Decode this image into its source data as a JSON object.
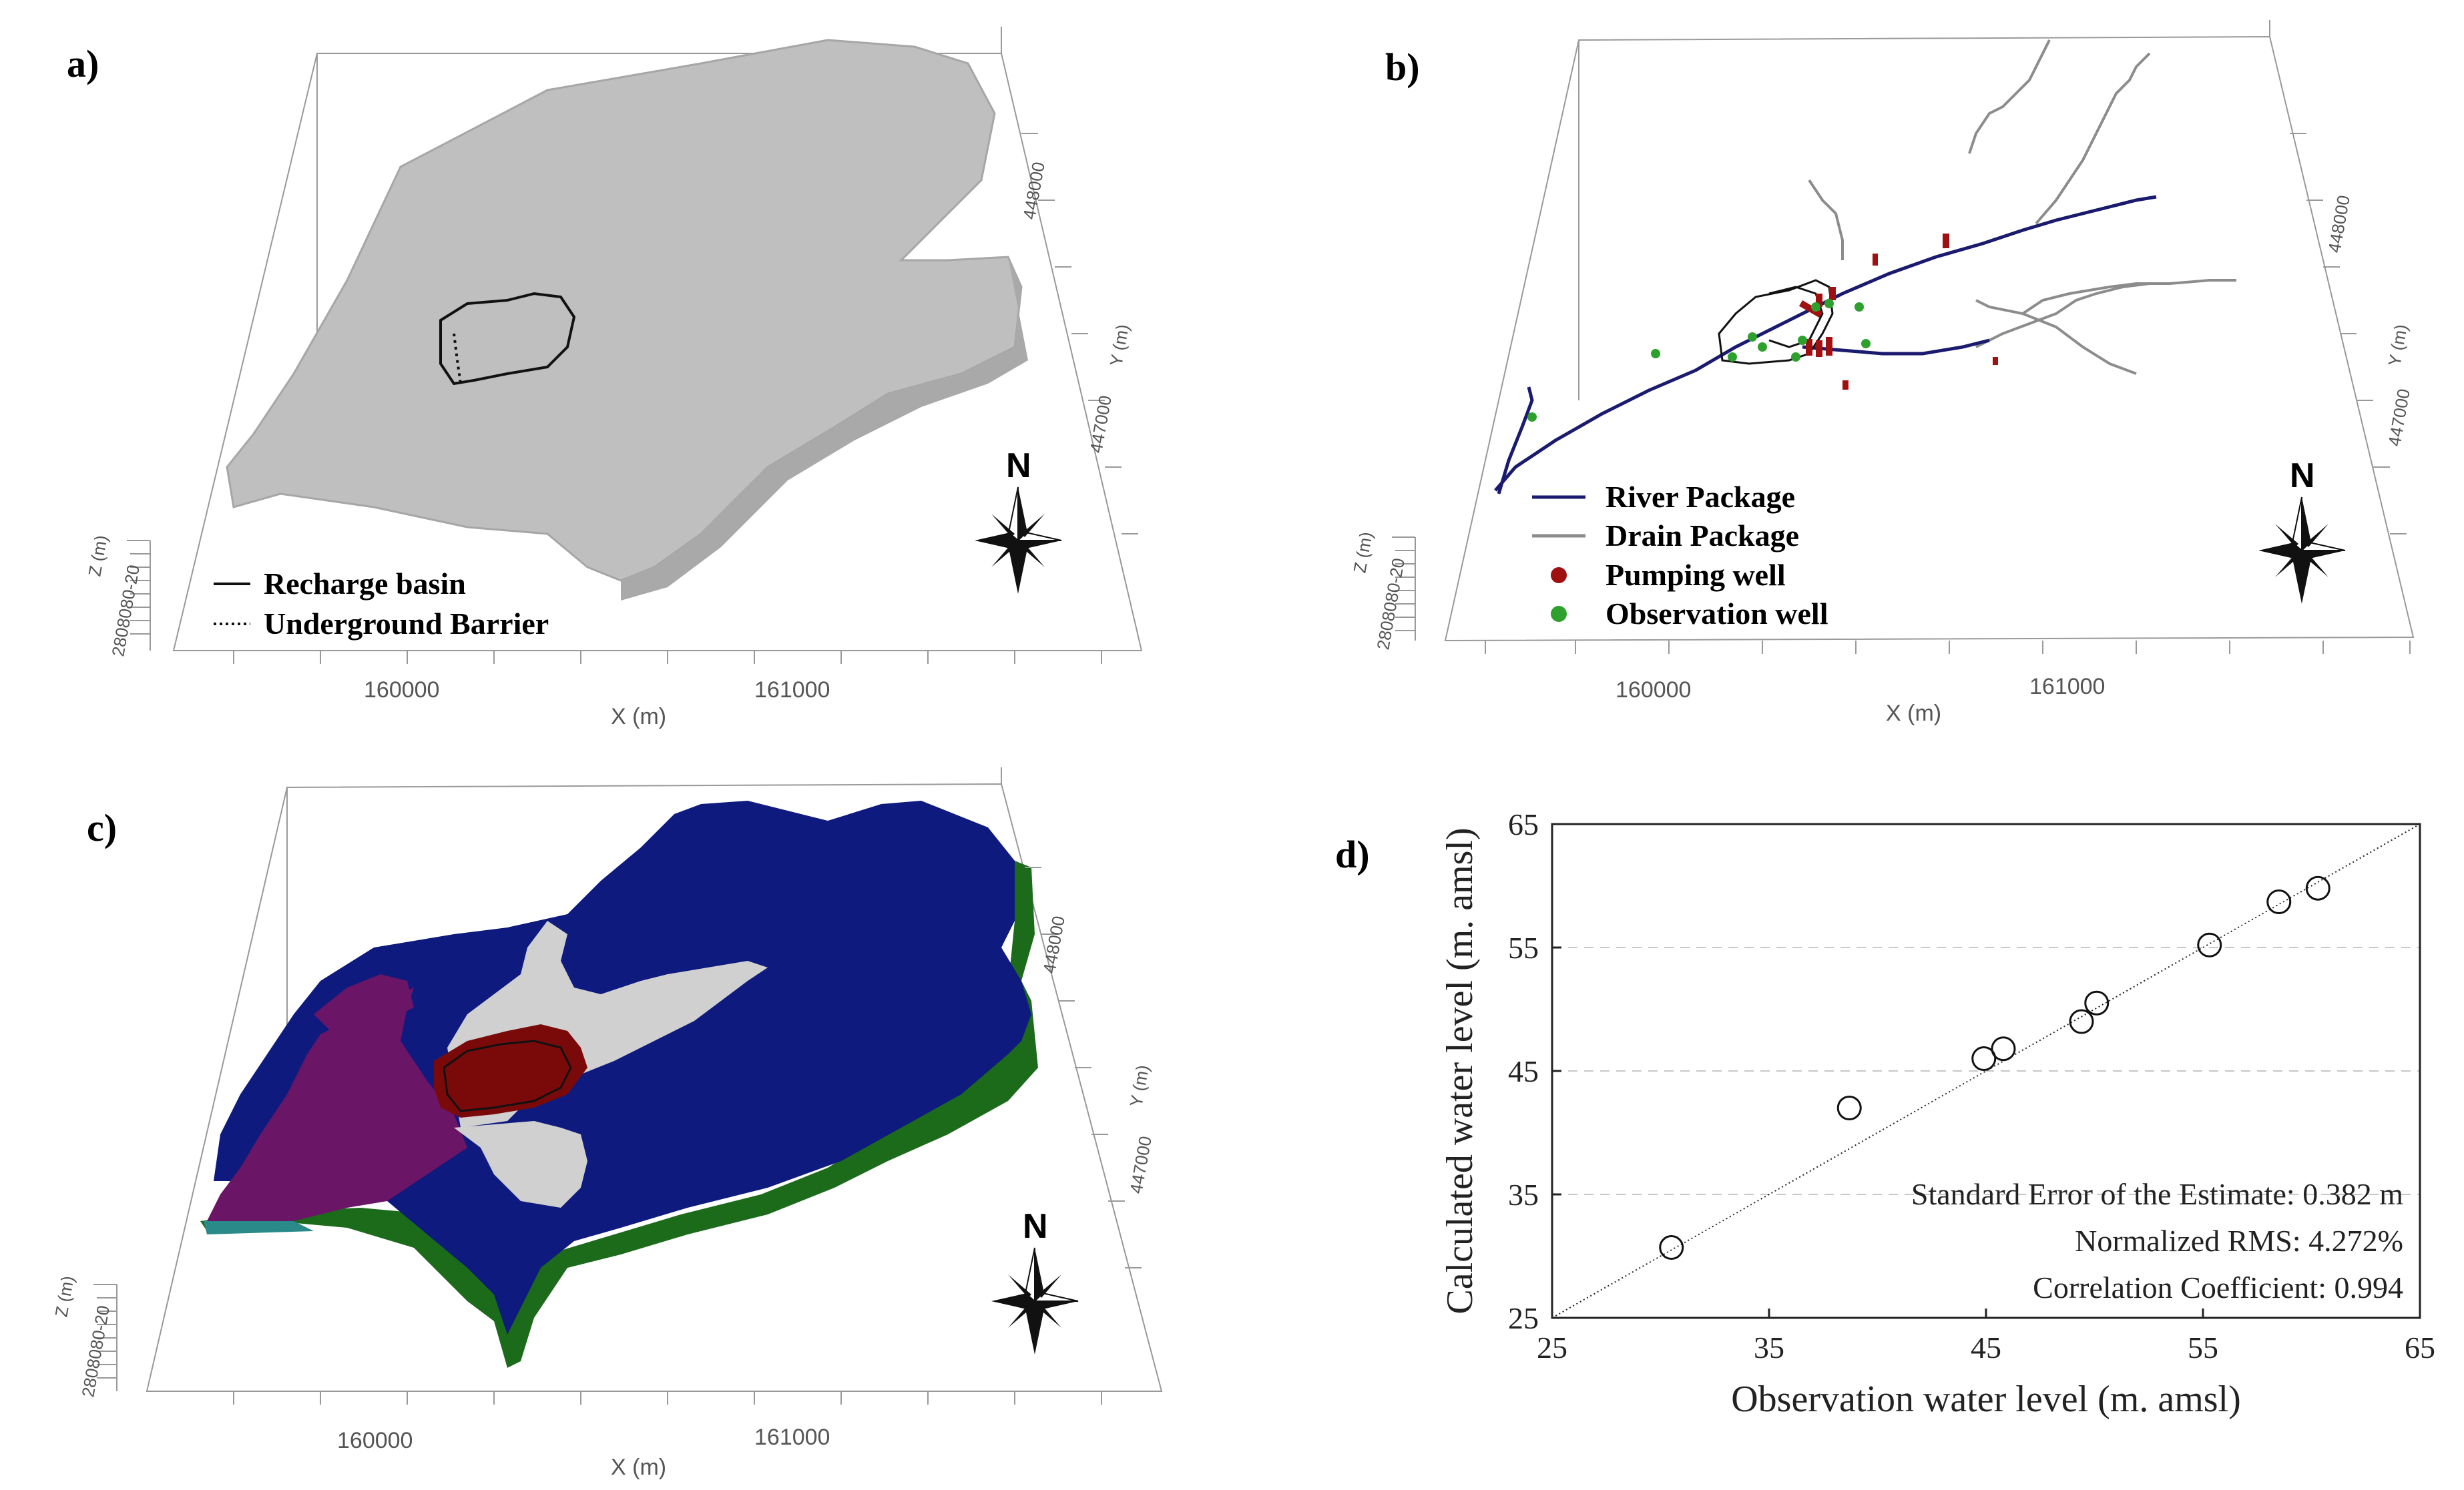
{
  "panels": {
    "a": {
      "letter": "a)",
      "legend": [
        "Recharge basin",
        "Underground Barrier"
      ],
      "x_ticks": [
        "160000",
        "161000"
      ],
      "x_label": "X (m)",
      "y_ticks": [
        "448000",
        "447000"
      ],
      "y_label": "Y (m)",
      "z_label": "Z (m)",
      "z_ticks": "2808080-20",
      "north": "N"
    },
    "b": {
      "letter": "b)",
      "legend": [
        "River Package",
        "Drain Package",
        "Pumping well",
        "Observation well"
      ],
      "x_ticks": [
        "160000",
        "161000"
      ],
      "x_label": "X (m)",
      "y_ticks": [
        "448000",
        "447000"
      ],
      "y_label": "Y (m)",
      "z_label": "Z (m)",
      "z_ticks": "2808080-20",
      "north": "N",
      "colors": {
        "river": "#1a1a6e",
        "drain": "#8c8c8c",
        "pumping": "#a01010",
        "observation": "#2ea02e"
      }
    },
    "c": {
      "letter": "c)",
      "x_ticks": [
        "160000",
        "161000"
      ],
      "x_label": "X (m)",
      "y_ticks": [
        "448000",
        "447000"
      ],
      "y_label": "Y (m)",
      "z_label": "Z (m)",
      "z_ticks": "2808080-20",
      "north": "N",
      "colors": {
        "navy": "#0e1a7e",
        "purple": "#6a1566",
        "red": "#7a0a0a",
        "gray": "#d0d0d0",
        "green": "#1b6b1b",
        "teal": "#2a8a8a"
      }
    },
    "d": {
      "letter": "d)",
      "stats": [
        "Standard Error of the Estimate: 0.382 m",
        "Normalized RMS: 4.272%",
        "Correlation Coefficient: 0.994"
      ]
    }
  },
  "chart_data": {
    "type": "scatter",
    "title": "",
    "xlabel": "Observation water level (m. amsl)",
    "ylabel": "Calculated water level (m. amsl)",
    "xlim": [
      25,
      65
    ],
    "ylim": [
      25,
      65
    ],
    "xticks": [
      25,
      35,
      45,
      55,
      65
    ],
    "yticks": [
      25,
      35,
      45,
      55,
      65
    ],
    "gridlines_y": [
      35,
      45,
      55
    ],
    "reference_line": "1:1",
    "points": [
      [
        30.5,
        30.7
      ],
      [
        38.7,
        42.0
      ],
      [
        44.9,
        46.0
      ],
      [
        45.8,
        46.8
      ],
      [
        49.4,
        49.0
      ],
      [
        50.1,
        50.5
      ],
      [
        55.3,
        55.2
      ],
      [
        58.5,
        58.7
      ],
      [
        60.3,
        59.8
      ]
    ]
  }
}
